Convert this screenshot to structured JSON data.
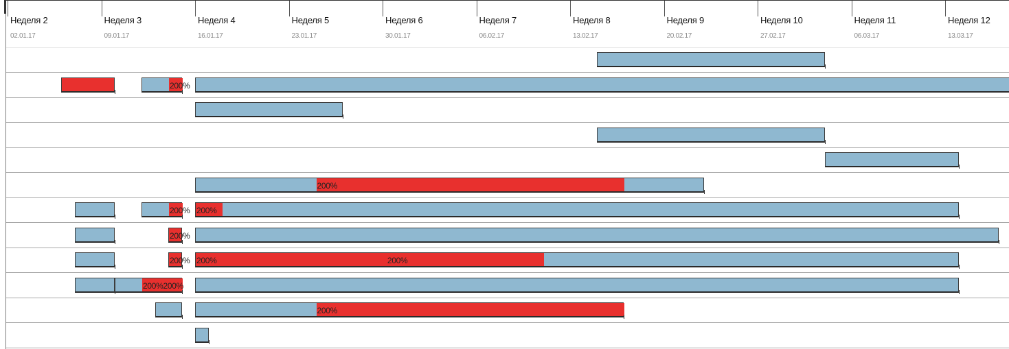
{
  "timeline": {
    "weeks": [
      {
        "label": "Неделя 2",
        "date": "02.01.17"
      },
      {
        "label": "Неделя 3",
        "date": "09.01.17"
      },
      {
        "label": "Неделя 4",
        "date": "16.01.17"
      },
      {
        "label": "Неделя 5",
        "date": "23.01.17"
      },
      {
        "label": "Неделя 6",
        "date": "30.01.17"
      },
      {
        "label": "Неделя 7",
        "date": "06.02.17"
      },
      {
        "label": "Неделя 8",
        "date": "13.02.17"
      },
      {
        "label": "Неделя 9",
        "date": "20.02.17"
      },
      {
        "label": "Неделя 10",
        "date": "27.02.17"
      },
      {
        "label": "Неделя 11",
        "date": "06.03.17"
      },
      {
        "label": "Неделя 12",
        "date": "13.03.17"
      }
    ]
  },
  "colors": {
    "bar": "#8fb8d0",
    "overload": "#e8302e",
    "grid": "#a8a8a8"
  },
  "rows": [
    {
      "bars": [
        {
          "start": "15.02.17",
          "end": "04.03.17"
        }
      ]
    },
    {
      "bars": [
        {
          "start": "06.01.17",
          "end": "10.01.17",
          "overload": true
        },
        {
          "start": "12.01.17",
          "end": "15.01.17",
          "segments": [
            {
              "start": "14.01.17",
              "end": "15.01.17",
              "text": "200%"
            }
          ]
        },
        {
          "start": "16.01.17",
          "end": "21.03.17"
        }
      ]
    },
    {
      "bars": [
        {
          "start": "16.01.17",
          "end": "27.01.17"
        }
      ]
    },
    {
      "bars": [
        {
          "start": "15.02.17",
          "end": "04.03.17"
        }
      ]
    },
    {
      "bars": [
        {
          "start": "04.03.17",
          "end": "14.03.17"
        }
      ]
    },
    {
      "bars": [
        {
          "start": "16.01.17",
          "end": "23.02.17",
          "segments": [
            {
              "start": "25.01.17",
              "end": "17.02.17",
              "text": "200%"
            }
          ]
        }
      ]
    },
    {
      "bars": [
        {
          "start": "07.01.17",
          "end": "10.01.17"
        },
        {
          "start": "12.01.17",
          "end": "15.01.17",
          "segments": [
            {
              "start": "14.01.17",
              "end": "15.01.17",
              "text": "200%"
            }
          ]
        },
        {
          "start": "16.01.17",
          "end": "14.03.17",
          "segments": [
            {
              "start": "16.01.17",
              "end": "18.01.17",
              "text": "200%"
            }
          ]
        }
      ]
    },
    {
      "bars": [
        {
          "start": "07.01.17",
          "end": "10.01.17"
        },
        {
          "start": "14.01.17",
          "end": "15.01.17",
          "overload": true,
          "text": "200%"
        },
        {
          "start": "16.01.17",
          "end": "17.03.17"
        }
      ]
    },
    {
      "bars": [
        {
          "start": "07.01.17",
          "end": "10.01.17"
        },
        {
          "start": "14.01.17",
          "end": "15.01.17",
          "overload": true,
          "text": "200%"
        },
        {
          "start": "16.01.17",
          "end": "14.03.17",
          "segments": [
            {
              "start": "16.01.17",
              "end": "11.02.17",
              "text": "200%",
              "text2": "200%"
            }
          ]
        }
      ]
    },
    {
      "bars": [
        {
          "start": "07.01.17",
          "end": "10.01.17"
        },
        {
          "start": "10.01.17",
          "end": "15.01.17",
          "segments": [
            {
              "start": "12.01.17",
              "end": "15.01.17",
              "text": "200%200%"
            }
          ]
        },
        {
          "start": "16.01.17",
          "end": "14.03.17"
        }
      ]
    },
    {
      "bars": [
        {
          "start": "13.01.17",
          "end": "15.01.17"
        },
        {
          "start": "16.01.17",
          "end": "17.02.17",
          "segments": [
            {
              "start": "25.01.17",
              "end": "17.02.17",
              "text": "200%"
            }
          ]
        }
      ]
    },
    {
      "bars": [
        {
          "start": "16.01.17",
          "end": "17.01.17"
        }
      ]
    }
  ]
}
